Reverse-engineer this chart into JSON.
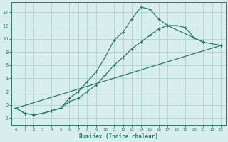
{
  "xlabel": "Humidex (Indice chaleur)",
  "xlim": [
    -0.5,
    23.5
  ],
  "ylim": [
    -3,
    15.5
  ],
  "xticks": [
    0,
    1,
    2,
    3,
    4,
    5,
    6,
    7,
    8,
    9,
    10,
    11,
    12,
    13,
    14,
    15,
    16,
    17,
    18,
    19,
    20,
    21,
    22,
    23
  ],
  "yticks": [
    -2,
    0,
    2,
    4,
    6,
    8,
    10,
    12,
    14
  ],
  "line_color": "#2a7a6a",
  "bg_color": "#d8eeed",
  "grid_color": "#aacece",
  "line1_x": [
    0,
    1,
    2,
    3,
    4,
    5,
    6,
    7,
    8,
    9,
    10,
    11,
    12,
    13,
    14,
    15,
    16,
    17,
    18,
    19,
    20,
    21
  ],
  "line1_y": [
    -0.5,
    -1.3,
    -1.5,
    -1.3,
    -0.9,
    -0.5,
    1.0,
    2.0,
    3.5,
    5.0,
    7.2,
    9.8,
    11.0,
    13.0,
    14.8,
    14.5,
    13.0,
    12.0,
    12.0,
    11.7,
    10.1,
    9.5
  ],
  "line2_x": [
    0,
    1,
    2,
    3,
    4,
    5,
    6,
    7,
    8,
    9,
    10,
    11,
    12,
    13,
    14,
    15,
    16,
    17,
    21,
    23
  ],
  "line2_y": [
    -0.5,
    -1.3,
    -1.5,
    -1.3,
    -0.9,
    -0.5,
    0.5,
    1.0,
    2.0,
    3.0,
    4.5,
    6.0,
    7.2,
    8.5,
    9.5,
    10.5,
    11.5,
    12.0,
    9.5,
    9.0
  ],
  "line3_x": [
    0,
    23
  ],
  "line3_y": [
    -0.5,
    9.0
  ],
  "line_width": 0.9,
  "marker": "+"
}
